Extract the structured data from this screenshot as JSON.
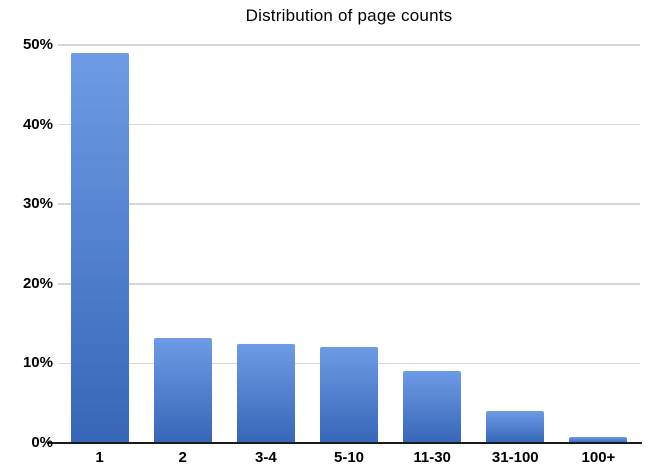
{
  "chart_data": {
    "type": "bar",
    "title": "Distribution of page counts",
    "categories": [
      "1",
      "2",
      "3-4",
      "5-10",
      "11-30",
      "31-100",
      "100+"
    ],
    "values": [
      49,
      13.2,
      12.4,
      12,
      9,
      4,
      0.8
    ],
    "xlabel": "",
    "ylabel": "",
    "ylim": [
      0,
      50
    ],
    "y_ticks": [
      0,
      10,
      20,
      30,
      40,
      50
    ],
    "y_tick_labels": [
      "0%",
      "10%",
      "20%",
      "30%",
      "40%",
      "50%"
    ],
    "grid": "horizontal-only",
    "legend": "none",
    "colors": {
      "bar_gradient_top": "#6d9be5",
      "bar_gradient_bottom": "#3766b8",
      "gridline": "#d6d6d6",
      "axis_line": "#1b1b1b",
      "text": "#000000",
      "background": "#ffffff"
    }
  }
}
